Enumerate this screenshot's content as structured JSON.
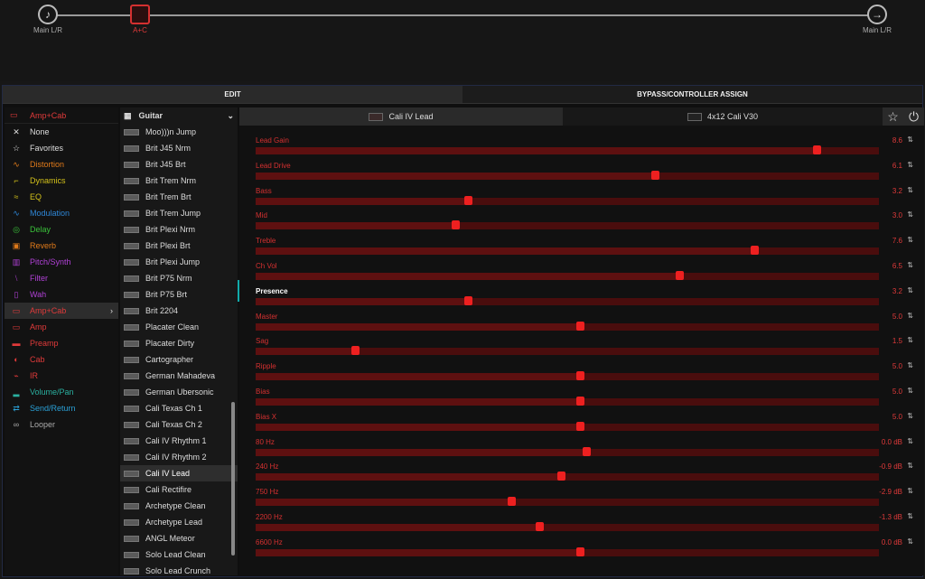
{
  "chain": {
    "input_label": "Main L/R",
    "block_label": "A+C",
    "output_label": "Main L/R"
  },
  "tabs": {
    "edit": "EDIT",
    "bypass": "BYPASS/CONTROLLER ASSIGN"
  },
  "categories": {
    "header": "Amp+Cab",
    "items": [
      {
        "label": "None",
        "color": "#dddddd",
        "icon": "x-icon"
      },
      {
        "label": "Favorites",
        "color": "#dddddd",
        "icon": "star-icon"
      },
      {
        "label": "Distortion",
        "color": "#e07a1a",
        "icon": "distortion-icon"
      },
      {
        "label": "Dynamics",
        "color": "#d4c21a",
        "icon": "dynamics-icon"
      },
      {
        "label": "EQ",
        "color": "#d4c21a",
        "icon": "eq-icon"
      },
      {
        "label": "Modulation",
        "color": "#2e86d6",
        "icon": "modulation-icon"
      },
      {
        "label": "Delay",
        "color": "#3ac23a",
        "icon": "delay-icon"
      },
      {
        "label": "Reverb",
        "color": "#e07a1a",
        "icon": "reverb-icon"
      },
      {
        "label": "Pitch/Synth",
        "color": "#b040d6",
        "icon": "pitch-icon"
      },
      {
        "label": "Filter",
        "color": "#b040d6",
        "icon": "filter-icon"
      },
      {
        "label": "Wah",
        "color": "#b040d6",
        "icon": "wah-icon"
      },
      {
        "label": "Amp+Cab",
        "color": "#e03a3a",
        "icon": "ampcab-icon",
        "selected": true
      },
      {
        "label": "Amp",
        "color": "#e03a3a",
        "icon": "amp-icon"
      },
      {
        "label": "Preamp",
        "color": "#e03a3a",
        "icon": "preamp-icon"
      },
      {
        "label": "Cab",
        "color": "#e03a3a",
        "icon": "cab-icon"
      },
      {
        "label": "IR",
        "color": "#e03a3a",
        "icon": "ir-icon"
      },
      {
        "label": "Volume/Pan",
        "color": "#2ab0a0",
        "icon": "volume-icon"
      },
      {
        "label": "Send/Return",
        "color": "#2aa0d6",
        "icon": "send-icon"
      },
      {
        "label": "Looper",
        "color": "#aaaaaa",
        "icon": "looper-icon"
      }
    ]
  },
  "models": {
    "header": "Guitar",
    "items": [
      "Moo)))n Jump",
      "Brit J45 Nrm",
      "Brit J45 Brt",
      "Brit Trem Nrm",
      "Brit Trem Brt",
      "Brit Trem Jump",
      "Brit Plexi Nrm",
      "Brit Plexi Brt",
      "Brit Plexi Jump",
      "Brit P75 Nrm",
      "Brit P75 Brt",
      "Brit 2204",
      "Placater Clean",
      "Placater Dirty",
      "Cartographer",
      "German Mahadeva",
      "German Ubersonic",
      "Cali Texas Ch 1",
      "Cali Texas Ch 2",
      "Cali IV Rhythm 1",
      "Cali IV Rhythm 2",
      "Cali IV Lead",
      "Cali Rectifire",
      "Archetype Clean",
      "Archetype Lead",
      "ANGL Meteor",
      "Solo Lead Clean",
      "Solo Lead Crunch"
    ],
    "selected": "Cali IV Lead"
  },
  "block_tabs": {
    "amp": "Cali IV Lead",
    "cab": "4x12 Cali V30"
  },
  "params": [
    {
      "name": "Lead Gain",
      "value": "8.6",
      "level": 0.9
    },
    {
      "name": "Lead Drive",
      "value": "6.1",
      "level": 0.64
    },
    {
      "name": "Bass",
      "value": "3.2",
      "level": 0.34
    },
    {
      "name": "Mid",
      "value": "3.0",
      "level": 0.32
    },
    {
      "name": "Treble",
      "value": "7.6",
      "level": 0.8
    },
    {
      "name": "Ch Vol",
      "value": "6.5",
      "level": 0.68
    },
    {
      "name": "Presence",
      "value": "3.2",
      "level": 0.34,
      "active": true
    },
    {
      "name": "Master",
      "value": "5.0",
      "level": 0.52
    },
    {
      "name": "Sag",
      "value": "1.5",
      "level": 0.16
    },
    {
      "name": "Ripple",
      "value": "5.0",
      "level": 0.52
    },
    {
      "name": "Bias",
      "value": "5.0",
      "level": 0.52
    },
    {
      "name": "Bias X",
      "value": "5.0",
      "level": 0.52
    },
    {
      "name": "80 Hz",
      "value": "0.0 dB",
      "level": 0.53
    },
    {
      "name": "240 Hz",
      "value": "-0.9 dB",
      "level": 0.49
    },
    {
      "name": "750 Hz",
      "value": "-2.9 dB",
      "level": 0.41
    },
    {
      "name": "2200 Hz",
      "value": "-1.3 dB",
      "level": 0.455
    },
    {
      "name": "6600 Hz",
      "value": "0.0 dB",
      "level": 0.52
    }
  ]
}
